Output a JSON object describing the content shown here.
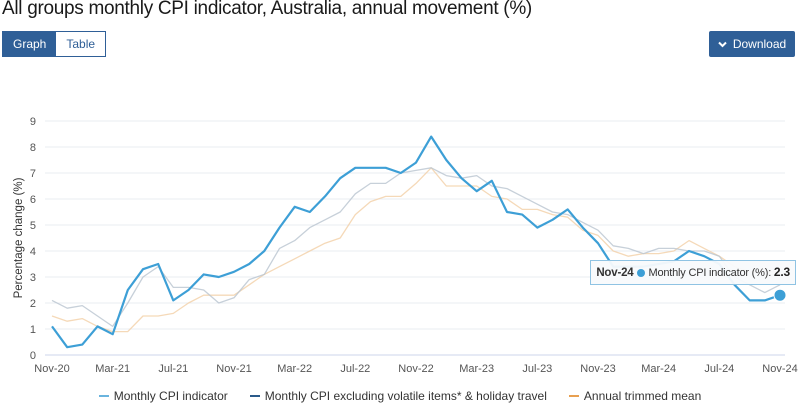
{
  "title": "All groups monthly CPI indicator, Australia, annual movement (%)",
  "view_toggle": {
    "graph": "Graph",
    "table": "Table",
    "selected": "Graph"
  },
  "download_label": "Download",
  "icons": {
    "download": "chevron-down-icon"
  },
  "tooltip": {
    "date": "Nov-24",
    "label": "Monthly CPI indicator (%): ",
    "value": "2.3"
  },
  "chart_data": {
    "type": "line",
    "title": "All groups monthly CPI indicator, Australia, annual movement (%)",
    "ylabel": "Percentage change (%)",
    "xlabel": "",
    "ylim": [
      0,
      9
    ],
    "yticks": [
      "0",
      "1",
      "2",
      "3",
      "4",
      "5",
      "6",
      "7",
      "8",
      "9"
    ],
    "xtick_labels": [
      "Nov-20",
      "Mar-21",
      "Jul-21",
      "Nov-21",
      "Mar-22",
      "Jul-22",
      "Nov-22",
      "Mar-23",
      "Jul-23",
      "Nov-23",
      "Mar-24",
      "Jul-24",
      "Nov-24"
    ],
    "grid": true,
    "legend_placement": "bottom",
    "x": [
      "Nov-20",
      "Dec-20",
      "Jan-21",
      "Feb-21",
      "Mar-21",
      "Apr-21",
      "May-21",
      "Jun-21",
      "Jul-21",
      "Aug-21",
      "Sep-21",
      "Oct-21",
      "Nov-21",
      "Dec-21",
      "Jan-22",
      "Feb-22",
      "Mar-22",
      "Apr-22",
      "May-22",
      "Jun-22",
      "Jul-22",
      "Aug-22",
      "Sep-22",
      "Oct-22",
      "Nov-22",
      "Dec-22",
      "Jan-23",
      "Feb-23",
      "Mar-23",
      "Apr-23",
      "May-23",
      "Jun-23",
      "Jul-23",
      "Aug-23",
      "Sep-23",
      "Oct-23",
      "Nov-23",
      "Dec-23",
      "Jan-24",
      "Feb-24",
      "Mar-24",
      "Apr-24",
      "May-24",
      "Jun-24",
      "Jul-24",
      "Aug-24",
      "Sep-24",
      "Oct-24",
      "Nov-24"
    ],
    "series": [
      {
        "name": "Monthly CPI indicator",
        "color": "#3d9fd6",
        "values": [
          1.1,
          0.3,
          0.4,
          1.1,
          0.8,
          2.5,
          3.3,
          3.5,
          2.1,
          2.5,
          3.1,
          3.0,
          3.2,
          3.5,
          4.0,
          4.9,
          5.7,
          5.5,
          6.1,
          6.8,
          7.2,
          7.2,
          7.2,
          7.0,
          7.4,
          8.4,
          7.5,
          6.8,
          6.3,
          6.7,
          5.5,
          5.4,
          4.9,
          5.2,
          5.6,
          4.9,
          4.3,
          3.4,
          3.4,
          3.4,
          3.5,
          3.6,
          4.0,
          3.8,
          3.5,
          2.7,
          2.1,
          2.1,
          2.3
        ]
      },
      {
        "name": "Monthly CPI excluding volatile items* & holiday travel",
        "color": "#2a5a8a",
        "values": [
          2.1,
          1.8,
          1.9,
          1.5,
          1.1,
          2.0,
          3.0,
          3.4,
          2.6,
          2.6,
          2.5,
          2.0,
          2.2,
          2.9,
          3.1,
          4.1,
          4.4,
          4.9,
          5.2,
          5.5,
          6.2,
          6.6,
          6.6,
          7.0,
          7.1,
          7.2,
          6.9,
          6.8,
          6.9,
          6.5,
          6.4,
          6.1,
          5.8,
          5.5,
          5.4,
          5.1,
          4.8,
          4.2,
          4.1,
          3.9,
          4.1,
          4.1,
          4.0,
          4.0,
          3.8,
          3.0,
          2.7,
          2.4,
          2.7
        ]
      },
      {
        "name": "Annual trimmed mean",
        "color": "#e8a050",
        "values": [
          1.5,
          1.3,
          1.4,
          1.1,
          0.9,
          0.9,
          1.5,
          1.5,
          1.6,
          2.0,
          2.3,
          2.3,
          2.3,
          2.7,
          3.1,
          3.4,
          3.7,
          4.0,
          4.3,
          4.5,
          5.4,
          5.9,
          6.1,
          6.1,
          6.6,
          7.2,
          6.5,
          6.5,
          6.5,
          6.1,
          6.0,
          5.6,
          5.6,
          5.4,
          5.3,
          4.8,
          4.6,
          4.0,
          3.8,
          3.9,
          3.9,
          4.0,
          4.4,
          4.1,
          3.8,
          3.4,
          3.2,
          3.2,
          3.2
        ]
      }
    ],
    "highlighted_point": {
      "series": "Monthly CPI indicator",
      "x": "Nov-24",
      "y": 2.3
    }
  }
}
